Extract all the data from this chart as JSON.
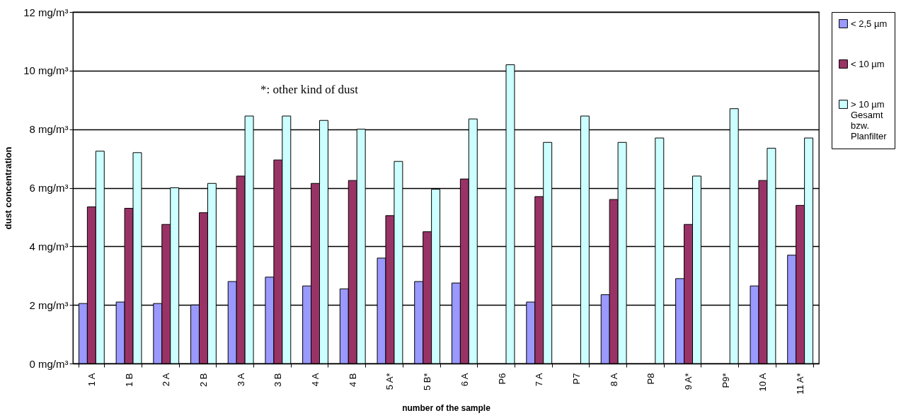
{
  "chart_data": {
    "type": "bar",
    "xlabel": "number of the sample",
    "ylabel": "dust concentration",
    "categories": [
      "1 A",
      "1 B",
      "2 A",
      "2 B",
      "3 A",
      "3 B",
      "4 A",
      "4 B",
      "5 A*",
      "5 B*",
      "6 A",
      "P6",
      "7 A",
      "P7",
      "8 A",
      "P8",
      "9 A*",
      "P9*",
      "10 A",
      "11 A*"
    ],
    "series": [
      {
        "name": "< 2,5 µm",
        "color": "#9999ff",
        "values": [
          2.05,
          2.1,
          2.05,
          2.0,
          2.8,
          2.95,
          2.65,
          2.55,
          3.6,
          2.8,
          2.75,
          null,
          2.1,
          null,
          2.35,
          null,
          2.9,
          null,
          2.65,
          3.7
        ]
      },
      {
        "name": "< 10 µm",
        "color": "#993366",
        "values": [
          5.35,
          5.3,
          4.75,
          5.15,
          6.4,
          6.95,
          6.15,
          6.25,
          5.05,
          4.5,
          6.3,
          null,
          5.7,
          null,
          5.6,
          null,
          4.75,
          null,
          6.25,
          5.4
        ]
      },
      {
        "name": "> 10 µm Gesamt bzw. Planfilter",
        "color": "#ccffff",
        "values": [
          7.25,
          7.2,
          6.0,
          6.15,
          8.45,
          8.45,
          8.3,
          8.0,
          6.9,
          5.95,
          8.35,
          10.2,
          7.55,
          8.45,
          7.55,
          7.7,
          6.4,
          8.7,
          7.35,
          7.7
        ]
      }
    ],
    "ylim": [
      0,
      12
    ],
    "yticks": [
      {
        "value": 0,
        "label": "0 mg/m³"
      },
      {
        "value": 2,
        "label": "2 mg/m³"
      },
      {
        "value": 4,
        "label": "4 mg/m³"
      },
      {
        "value": 6,
        "label": "6 mg/m³"
      },
      {
        "value": 8,
        "label": "8 mg/m³"
      },
      {
        "value": 10,
        "label": "10 mg/m³"
      },
      {
        "value": 12,
        "label": "12 mg/m³"
      }
    ],
    "grid": "y",
    "legend": "right",
    "annotations": [
      "*:  other kind of dust"
    ]
  }
}
